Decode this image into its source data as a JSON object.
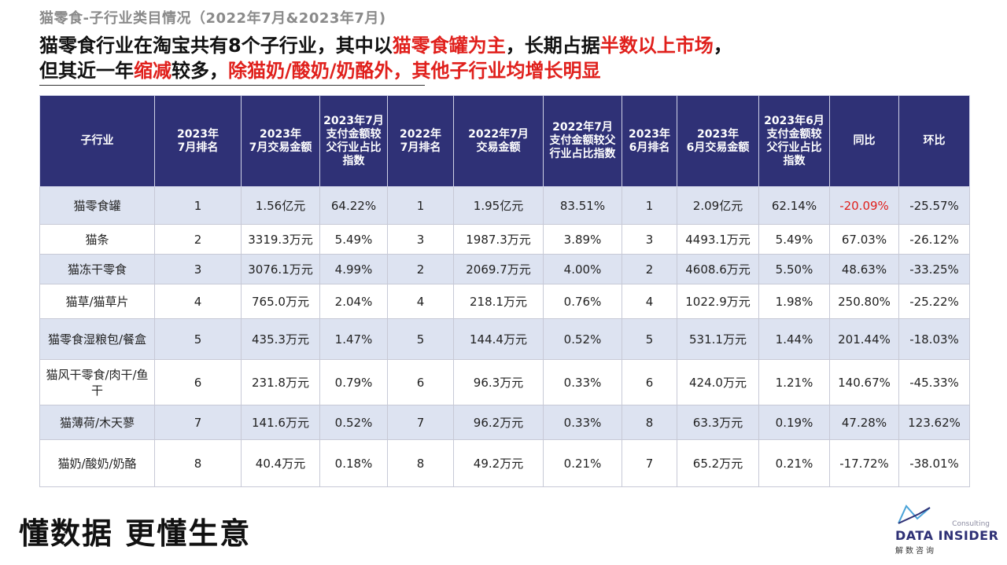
{
  "page": {
    "subtitle": "猫零食-子行业类目情况（2022年7月&2023年7月)",
    "headline_line1": {
      "p1": "猫零食行业在淘宝共有8个子行业，其中以",
      "p2": "猫零食罐为主",
      "p3": "，长期占据",
      "p4": "半数以上市场",
      "p5": "，"
    },
    "headline_line2": {
      "p1": "但其近一年",
      "p2": "缩减",
      "p3": "较多，",
      "p4": "除猫奶/酸奶/奶酪外，其他子行业均增长明显"
    },
    "slogan": "懂数据 更懂生意",
    "logo": {
      "consulting": "Consulting",
      "name": "DATA INSIDER",
      "cn": "解数咨询"
    },
    "colors": {
      "header_bg": "#2f3176",
      "accent_red": "#e0201c",
      "row_shade": "#dde3f1"
    }
  },
  "table": {
    "headers": [
      "子行业",
      "2023年\n7月排名",
      "2023年\n7月交易金额",
      "2023年7月\n支付金额较\n父行业占比\n指数",
      "2022年\n7月排名",
      "2022年7月\n交易金额",
      "2022年7月\n支付金额较父\n行业占比指数",
      "2023年\n6月排名",
      "2023年\n6月交易金额",
      "2023年6月\n支付金额较\n父行业占比\n指数",
      "同比",
      "环比"
    ],
    "rows": [
      [
        "猫零食罐",
        "1",
        "1.56亿元",
        "64.22%",
        "1",
        "1.95亿元",
        "83.51%",
        "1",
        "2.09亿元",
        "62.14%",
        "-20.09%",
        "-25.57%"
      ],
      [
        "猫条",
        "2",
        "3319.3万元",
        "5.49%",
        "3",
        "1987.3万元",
        "3.89%",
        "3",
        "4493.1万元",
        "5.49%",
        "67.03%",
        "-26.12%"
      ],
      [
        "猫冻干零食",
        "3",
        "3076.1万元",
        "4.99%",
        "2",
        "2069.7万元",
        "4.00%",
        "2",
        "4608.6万元",
        "5.50%",
        "48.63%",
        "-33.25%"
      ],
      [
        "猫草/猫草片",
        "4",
        "765.0万元",
        "2.04%",
        "4",
        "218.1万元",
        "0.76%",
        "4",
        "1022.9万元",
        "1.98%",
        "250.80%",
        "-25.22%"
      ],
      [
        "猫零食湿粮包/餐盒",
        "5",
        "435.3万元",
        "1.47%",
        "5",
        "144.4万元",
        "0.52%",
        "5",
        "531.1万元",
        "1.44%",
        "201.44%",
        "-18.03%"
      ],
      [
        "猫风干零食/肉干/鱼干",
        "6",
        "231.8万元",
        "0.79%",
        "6",
        "96.3万元",
        "0.33%",
        "6",
        "424.0万元",
        "1.21%",
        "140.67%",
        "-45.33%"
      ],
      [
        "猫薄荷/木天蓼",
        "7",
        "141.6万元",
        "0.52%",
        "7",
        "96.2万元",
        "0.33%",
        "8",
        "63.3万元",
        "0.19%",
        "47.28%",
        "123.62%"
      ],
      [
        "猫奶/酸奶/奶酪",
        "8",
        "40.4万元",
        "0.18%",
        "8",
        "49.2万元",
        "0.21%",
        "7",
        "65.2万元",
        "0.21%",
        "-17.72%",
        "-38.01%"
      ]
    ]
  }
}
